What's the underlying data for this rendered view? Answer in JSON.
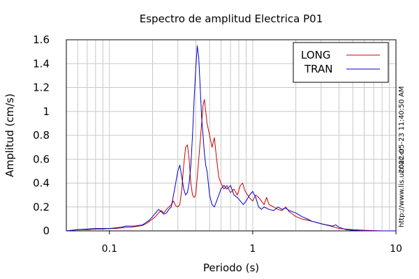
{
  "chart_data": {
    "type": "line",
    "title": "Espectro de amplitud Electrica P01",
    "xlabel": "Periodo (s)",
    "ylabel": "Amplitud (cm/s)",
    "x_scale": "log",
    "xlim": [
      0.05,
      10
    ],
    "ylim": [
      0,
      1.6
    ],
    "x_ticks": [
      {
        "value": 0.1,
        "label": "0.1"
      },
      {
        "value": 1,
        "label": "1"
      },
      {
        "value": 10,
        "label": "10"
      }
    ],
    "y_ticks": [
      {
        "value": 0,
        "label": "0"
      },
      {
        "value": 0.2,
        "label": "0.2"
      },
      {
        "value": 0.4,
        "label": "0.4"
      },
      {
        "value": 0.6,
        "label": "0.6"
      },
      {
        "value": 0.8,
        "label": "0.8"
      },
      {
        "value": 1.0,
        "label": "1"
      },
      {
        "value": 1.2,
        "label": "1.2"
      },
      {
        "value": 1.4,
        "label": "1.4"
      },
      {
        "value": 1.6,
        "label": "1.6"
      }
    ],
    "grid": true,
    "legend_position": "top-right",
    "series": [
      {
        "name": "LONG",
        "color": "#cc0000",
        "points": [
          [
            0.05,
            0.0
          ],
          [
            0.06,
            0.01
          ],
          [
            0.07,
            0.01
          ],
          [
            0.08,
            0.015
          ],
          [
            0.09,
            0.015
          ],
          [
            0.1,
            0.02
          ],
          [
            0.11,
            0.02
          ],
          [
            0.12,
            0.025
          ],
          [
            0.13,
            0.03
          ],
          [
            0.14,
            0.03
          ],
          [
            0.15,
            0.035
          ],
          [
            0.16,
            0.04
          ],
          [
            0.17,
            0.045
          ],
          [
            0.18,
            0.06
          ],
          [
            0.19,
            0.08
          ],
          [
            0.2,
            0.1
          ],
          [
            0.21,
            0.12
          ],
          [
            0.22,
            0.15
          ],
          [
            0.23,
            0.17
          ],
          [
            0.24,
            0.15
          ],
          [
            0.25,
            0.18
          ],
          [
            0.26,
            0.2
          ],
          [
            0.27,
            0.22
          ],
          [
            0.28,
            0.25
          ],
          [
            0.29,
            0.21
          ],
          [
            0.3,
            0.2
          ],
          [
            0.31,
            0.22
          ],
          [
            0.32,
            0.35
          ],
          [
            0.33,
            0.55
          ],
          [
            0.34,
            0.7
          ],
          [
            0.35,
            0.72
          ],
          [
            0.36,
            0.6
          ],
          [
            0.37,
            0.4
          ],
          [
            0.38,
            0.3
          ],
          [
            0.39,
            0.28
          ],
          [
            0.4,
            0.3
          ],
          [
            0.41,
            0.45
          ],
          [
            0.42,
            0.6
          ],
          [
            0.43,
            0.75
          ],
          [
            0.44,
            0.9
          ],
          [
            0.45,
            1.05
          ],
          [
            0.46,
            1.1
          ],
          [
            0.47,
            1.0
          ],
          [
            0.48,
            0.9
          ],
          [
            0.5,
            0.8
          ],
          [
            0.52,
            0.7
          ],
          [
            0.54,
            0.78
          ],
          [
            0.56,
            0.6
          ],
          [
            0.58,
            0.45
          ],
          [
            0.6,
            0.4
          ],
          [
            0.63,
            0.35
          ],
          [
            0.66,
            0.38
          ],
          [
            0.7,
            0.32
          ],
          [
            0.74,
            0.35
          ],
          [
            0.78,
            0.3
          ],
          [
            0.82,
            0.38
          ],
          [
            0.85,
            0.4
          ],
          [
            0.88,
            0.34
          ],
          [
            0.92,
            0.3
          ],
          [
            0.96,
            0.27
          ],
          [
            1.0,
            0.25
          ],
          [
            1.05,
            0.3
          ],
          [
            1.1,
            0.28
          ],
          [
            1.15,
            0.25
          ],
          [
            1.2,
            0.22
          ],
          [
            1.25,
            0.28
          ],
          [
            1.3,
            0.22
          ],
          [
            1.4,
            0.2
          ],
          [
            1.5,
            0.18
          ],
          [
            1.6,
            0.17
          ],
          [
            1.7,
            0.2
          ],
          [
            1.8,
            0.16
          ],
          [
            1.9,
            0.14
          ],
          [
            2.0,
            0.12
          ],
          [
            2.2,
            0.1
          ],
          [
            2.4,
            0.09
          ],
          [
            2.6,
            0.08
          ],
          [
            2.8,
            0.07
          ],
          [
            3.0,
            0.06
          ],
          [
            3.5,
            0.04
          ],
          [
            4.0,
            0.02
          ],
          [
            5.0,
            0.01
          ],
          [
            6.0,
            0.005
          ],
          [
            8.0,
            0.0
          ],
          [
            10.0,
            0.0
          ]
        ]
      },
      {
        "name": "TRAN",
        "color": "#0000cc",
        "points": [
          [
            0.05,
            0.0
          ],
          [
            0.06,
            0.01
          ],
          [
            0.07,
            0.015
          ],
          [
            0.08,
            0.02
          ],
          [
            0.09,
            0.02
          ],
          [
            0.1,
            0.02
          ],
          [
            0.11,
            0.025
          ],
          [
            0.12,
            0.03
          ],
          [
            0.13,
            0.04
          ],
          [
            0.14,
            0.04
          ],
          [
            0.15,
            0.04
          ],
          [
            0.16,
            0.045
          ],
          [
            0.17,
            0.05
          ],
          [
            0.18,
            0.07
          ],
          [
            0.19,
            0.09
          ],
          [
            0.2,
            0.12
          ],
          [
            0.21,
            0.15
          ],
          [
            0.22,
            0.18
          ],
          [
            0.23,
            0.16
          ],
          [
            0.24,
            0.14
          ],
          [
            0.25,
            0.15
          ],
          [
            0.26,
            0.18
          ],
          [
            0.27,
            0.2
          ],
          [
            0.28,
            0.3
          ],
          [
            0.29,
            0.4
          ],
          [
            0.3,
            0.5
          ],
          [
            0.31,
            0.55
          ],
          [
            0.32,
            0.45
          ],
          [
            0.33,
            0.35
          ],
          [
            0.34,
            0.3
          ],
          [
            0.35,
            0.32
          ],
          [
            0.36,
            0.4
          ],
          [
            0.37,
            0.55
          ],
          [
            0.38,
            0.8
          ],
          [
            0.39,
            1.1
          ],
          [
            0.4,
            1.35
          ],
          [
            0.41,
            1.55
          ],
          [
            0.42,
            1.45
          ],
          [
            0.43,
            1.2
          ],
          [
            0.44,
            0.95
          ],
          [
            0.45,
            0.8
          ],
          [
            0.46,
            0.65
          ],
          [
            0.47,
            0.55
          ],
          [
            0.48,
            0.5
          ],
          [
            0.49,
            0.4
          ],
          [
            0.5,
            0.3
          ],
          [
            0.52,
            0.22
          ],
          [
            0.54,
            0.2
          ],
          [
            0.56,
            0.25
          ],
          [
            0.58,
            0.3
          ],
          [
            0.6,
            0.35
          ],
          [
            0.63,
            0.38
          ],
          [
            0.66,
            0.35
          ],
          [
            0.7,
            0.38
          ],
          [
            0.74,
            0.3
          ],
          [
            0.78,
            0.28
          ],
          [
            0.82,
            0.25
          ],
          [
            0.86,
            0.22
          ],
          [
            0.9,
            0.25
          ],
          [
            0.95,
            0.3
          ],
          [
            1.0,
            0.33
          ],
          [
            1.05,
            0.28
          ],
          [
            1.1,
            0.2
          ],
          [
            1.15,
            0.18
          ],
          [
            1.2,
            0.2
          ],
          [
            1.3,
            0.18
          ],
          [
            1.4,
            0.17
          ],
          [
            1.5,
            0.2
          ],
          [
            1.6,
            0.18
          ],
          [
            1.7,
            0.19
          ],
          [
            1.8,
            0.17
          ],
          [
            2.0,
            0.15
          ],
          [
            2.2,
            0.12
          ],
          [
            2.4,
            0.1
          ],
          [
            2.6,
            0.08
          ],
          [
            2.8,
            0.07
          ],
          [
            3.0,
            0.06
          ],
          [
            3.3,
            0.05
          ],
          [
            3.6,
            0.04
          ],
          [
            3.8,
            0.05
          ],
          [
            4.0,
            0.03
          ],
          [
            4.5,
            0.01
          ],
          [
            5.0,
            0.005
          ],
          [
            6.0,
            0.0
          ],
          [
            10.0,
            0.0
          ]
        ]
      }
    ]
  },
  "side_text": {
    "timestamp": "2022-05-23 11:40:50 AM",
    "url": "http://www.lis.ucr.ac.cr"
  }
}
